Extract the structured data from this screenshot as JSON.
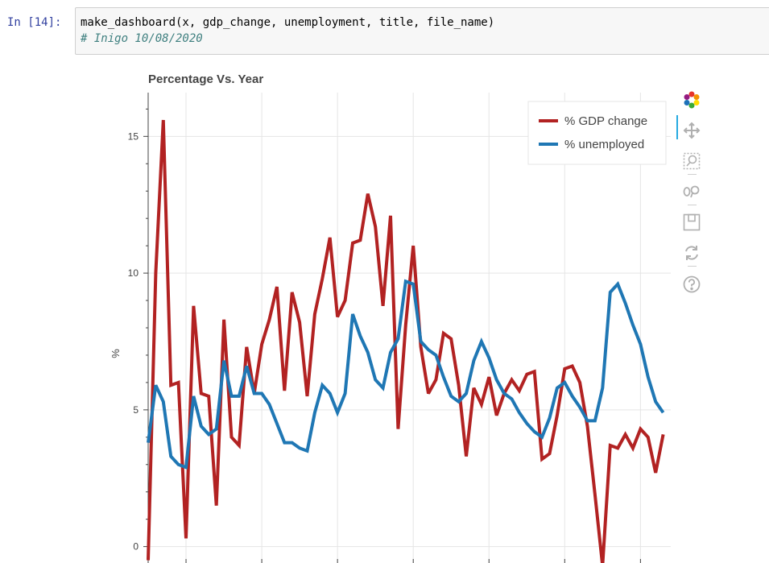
{
  "cell": {
    "prompt": "In [14]:",
    "code_line_1": "make_dashboard(x, gdp_change, unemployment, title, file_name)",
    "code_line_2": "# Inigo 10/08/2020"
  },
  "toolbar": {
    "tools": [
      {
        "name": "bokeh-logo-icon"
      },
      {
        "name": "pan-tool-icon"
      },
      {
        "name": "box-zoom-tool-icon"
      },
      {
        "name": "wheel-zoom-tool-icon"
      },
      {
        "name": "save-tool-icon"
      },
      {
        "name": "reset-tool-icon"
      },
      {
        "name": "help-tool-icon"
      }
    ]
  },
  "colors": {
    "gdp": "#b22222",
    "unemployment": "#1f77b4",
    "grid": "#e5e5e5"
  },
  "chart_data": {
    "type": "line",
    "title": "Percentage Vs. Year",
    "xlabel": "",
    "ylabel": "%",
    "yticks": [
      0,
      5,
      10,
      15
    ],
    "ylim": [
      -0.6,
      16.6
    ],
    "xlim": [
      0,
      69
    ],
    "grid": true,
    "legend_position": "top-right",
    "series": [
      {
        "name": "% GDP change",
        "color": "#b22222",
        "values": [
          -0.5,
          10.0,
          15.6,
          5.9,
          6.0,
          0.3,
          8.8,
          5.6,
          5.5,
          1.5,
          8.3,
          4.0,
          3.7,
          7.3,
          5.6,
          7.4,
          8.3,
          9.5,
          5.7,
          9.3,
          8.2,
          5.5,
          8.5,
          9.8,
          11.3,
          8.4,
          9.0,
          11.1,
          11.2,
          12.9,
          11.7,
          8.8,
          12.1,
          4.3,
          8.1,
          11.0,
          7.3,
          5.6,
          6.1,
          7.8,
          7.6,
          5.9,
          3.3,
          5.8,
          5.2,
          6.2,
          4.8,
          5.6,
          6.1,
          5.7,
          6.3,
          6.4,
          3.2,
          3.4,
          4.8,
          6.5,
          6.6,
          6.0,
          4.4,
          1.9,
          -0.7,
          3.7,
          3.6,
          4.1,
          3.6,
          4.3,
          4.0,
          2.7,
          4.1
        ],
        "x": [
          0,
          1,
          2,
          3,
          4,
          5,
          6,
          7,
          8,
          9,
          10,
          11,
          12,
          13,
          14,
          15,
          16,
          17,
          18,
          19,
          20,
          21,
          22,
          23,
          24,
          25,
          26,
          27,
          28,
          29,
          30,
          31,
          32,
          33,
          34,
          35,
          36,
          37,
          38,
          39,
          40,
          41,
          42,
          43,
          44,
          45,
          46,
          47,
          48,
          49,
          50,
          51,
          52,
          53,
          54,
          55,
          56,
          57,
          58,
          59,
          60,
          61,
          62,
          63,
          64,
          65,
          66,
          67,
          68
        ]
      },
      {
        "name": "% unemployed",
        "color": "#1f77b4",
        "values": [
          3.8,
          5.9,
          5.3,
          3.3,
          3.0,
          2.9,
          5.5,
          4.4,
          4.1,
          4.3,
          6.8,
          5.5,
          5.5,
          6.6,
          5.6,
          5.6,
          5.2,
          4.5,
          3.8,
          3.8,
          3.6,
          3.5,
          4.9,
          5.9,
          5.6,
          4.9,
          5.6,
          8.5,
          7.7,
          7.1,
          6.1,
          5.8,
          7.1,
          7.6,
          9.7,
          9.6,
          7.5,
          7.2,
          7.0,
          6.2,
          5.5,
          5.3,
          5.6,
          6.8,
          7.5,
          6.9,
          6.1,
          5.6,
          5.4,
          4.9,
          4.5,
          4.2,
          4.0,
          4.7,
          5.8,
          6.0,
          5.5,
          5.1,
          4.6,
          4.6,
          5.8,
          9.3,
          9.6,
          8.9,
          8.1,
          7.4,
          6.2,
          5.3,
          4.9
        ],
        "x": [
          0,
          1,
          2,
          3,
          4,
          5,
          6,
          7,
          8,
          9,
          10,
          11,
          12,
          13,
          14,
          15,
          16,
          17,
          18,
          19,
          20,
          21,
          22,
          23,
          24,
          25,
          26,
          27,
          28,
          29,
          30,
          31,
          32,
          33,
          34,
          35,
          36,
          37,
          38,
          39,
          40,
          41,
          42,
          43,
          44,
          45,
          46,
          47,
          48,
          49,
          50,
          51,
          52,
          53,
          54,
          55,
          56,
          57,
          58,
          59,
          60,
          61,
          62,
          63,
          64,
          65,
          66,
          67,
          68
        ]
      }
    ]
  }
}
